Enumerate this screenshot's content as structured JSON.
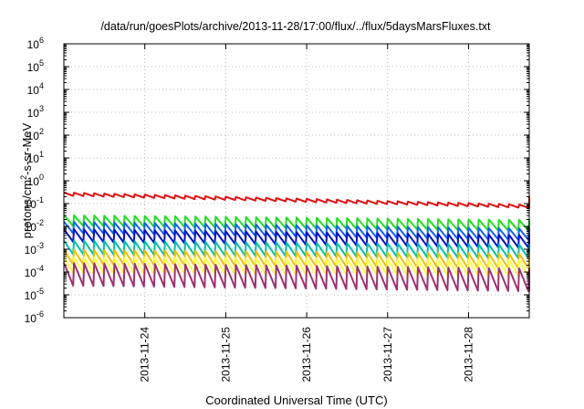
{
  "chart_data": {
    "type": "line",
    "title": "/data/run/goesPlots/archive/2013-11-28/17:00/flux/../flux/5daysMarsFluxes.txt",
    "xlabel": "Coordinated Universal Time (UTC)",
    "ylabel_parts": [
      "protons/cm",
      "2",
      "-s-sr-MeV"
    ],
    "y_scale": "log",
    "ylim_exp": [
      -6,
      6
    ],
    "ytick_exponents": [
      -6,
      -5,
      -4,
      -3,
      -2,
      -1,
      0,
      1,
      2,
      3,
      4,
      5,
      6
    ],
    "ytick_base": "10",
    "xlim": [
      "2013-11-23T00:00",
      "2013-11-28T18:00"
    ],
    "xticks": [
      "2013-11-24",
      "2013-11-25",
      "2013-11-26",
      "2013-11-27",
      "2013-11-28"
    ],
    "grid": true,
    "sawtooth_period_hours": 3,
    "series": [
      {
        "color": "#e01010",
        "start": 0.26,
        "end": 0.075,
        "final_spike": 0.21,
        "amp": 1.4
      },
      {
        "color": "#22dd22",
        "start": 0.018,
        "end": 0.011,
        "amp": 3.0
      },
      {
        "color": "#1060ff",
        "start": 0.009,
        "end": 0.0045,
        "amp": 3.2
      },
      {
        "color": "#0010c8",
        "start": 0.004,
        "end": 0.0022,
        "amp": 3.6
      },
      {
        "color": "#00c0a8",
        "start": 0.0012,
        "end": 0.0008,
        "amp": 4.0
      },
      {
        "color": "#f0c000",
        "start": 0.00045,
        "end": 0.0003,
        "amp": 4.5
      },
      {
        "color": "#ffff40",
        "start": 0.0002,
        "end": 0.00015,
        "amp": 5.0
      },
      {
        "color": "#a03070",
        "start": 8e-05,
        "end": 4.5e-05,
        "amp": 10.0
      }
    ]
  }
}
